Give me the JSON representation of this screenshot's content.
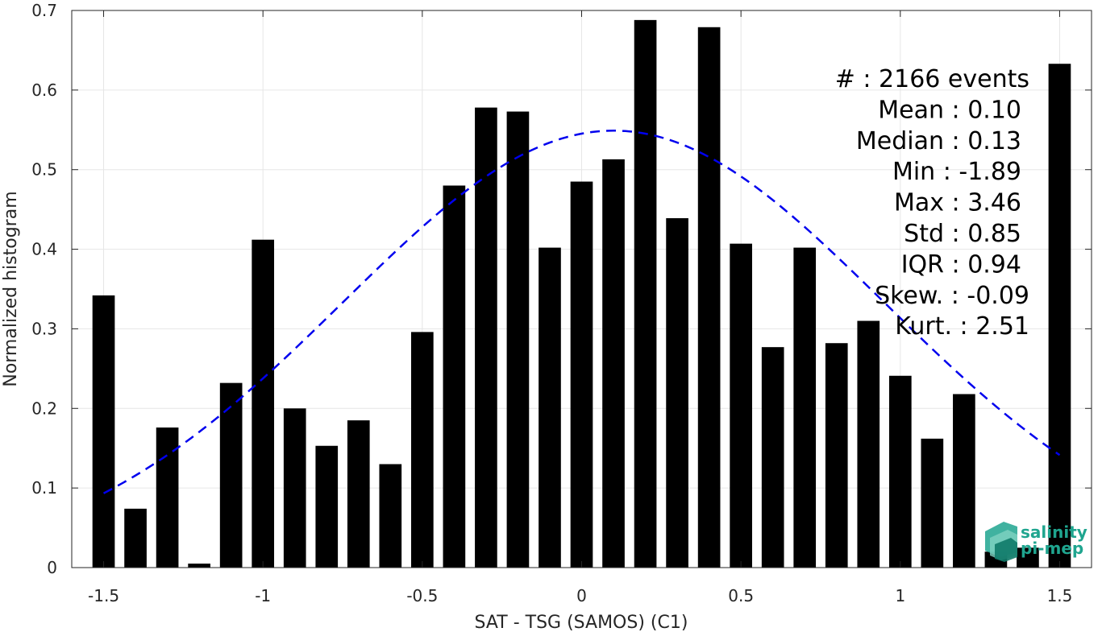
{
  "chart_data": {
    "type": "bar",
    "xlabel": "SAT - TSG (SAMOS) (C1)",
    "ylabel": "Normalized histogram",
    "xlim": [
      -1.6,
      1.6
    ],
    "ylim": [
      0,
      0.7
    ],
    "grid": true,
    "x_ticks": [
      {
        "value": -1.5,
        "label": "-1.5"
      },
      {
        "value": -1.0,
        "label": "-1"
      },
      {
        "value": -0.5,
        "label": "-0.5"
      },
      {
        "value": 0.0,
        "label": "0"
      },
      {
        "value": 0.5,
        "label": "0.5"
      },
      {
        "value": 1.0,
        "label": "1"
      },
      {
        "value": 1.5,
        "label": "1.5"
      }
    ],
    "y_ticks": [
      {
        "value": 0.0,
        "label": "0"
      },
      {
        "value": 0.1,
        "label": "0.1"
      },
      {
        "value": 0.2,
        "label": "0.2"
      },
      {
        "value": 0.3,
        "label": "0.3"
      },
      {
        "value": 0.4,
        "label": "0.4"
      },
      {
        "value": 0.5,
        "label": "0.5"
      },
      {
        "value": 0.6,
        "label": "0.6"
      },
      {
        "value": 0.7,
        "label": "0.7"
      }
    ],
    "bar_width": 0.07,
    "bar_color": "#000000",
    "x": [
      -1.5,
      -1.4,
      -1.3,
      -1.2,
      -1.1,
      -1.0,
      -0.9,
      -0.8,
      -0.7,
      -0.6,
      -0.5,
      -0.4,
      -0.3,
      -0.2,
      -0.1,
      0.0,
      0.1,
      0.2,
      0.3,
      0.4,
      0.5,
      0.6,
      0.7,
      0.8,
      0.9,
      1.0,
      1.1,
      1.2,
      1.3,
      1.4,
      1.5
    ],
    "values": [
      0.342,
      0.074,
      0.176,
      0.005,
      0.232,
      0.412,
      0.2,
      0.153,
      0.185,
      0.13,
      0.296,
      0.48,
      0.578,
      0.573,
      0.402,
      0.485,
      0.513,
      0.688,
      0.439,
      0.679,
      0.407,
      0.277,
      0.402,
      0.282,
      0.31,
      0.241,
      0.162,
      0.218,
      0.02,
      0.025,
      0.633
    ],
    "fit_curve": {
      "style": "dashed",
      "color": "#0000ee",
      "mean": 0.1,
      "std": 0.85,
      "peak": 0.549,
      "x_range": [
        -1.5,
        1.5
      ]
    },
    "stats_lines": [
      "#  : 2166 events",
      "Mean : 0.10",
      "Median : 0.13",
      "Min : -1.89",
      "Max : 3.46",
      "Std : 0.85",
      "IQR : 0.94",
      "Skew. : -0.09",
      "Kurt. : 2.51"
    ]
  },
  "logo": {
    "line1": "salinity",
    "line2": "pi-mep",
    "color": "#1fa58f"
  }
}
